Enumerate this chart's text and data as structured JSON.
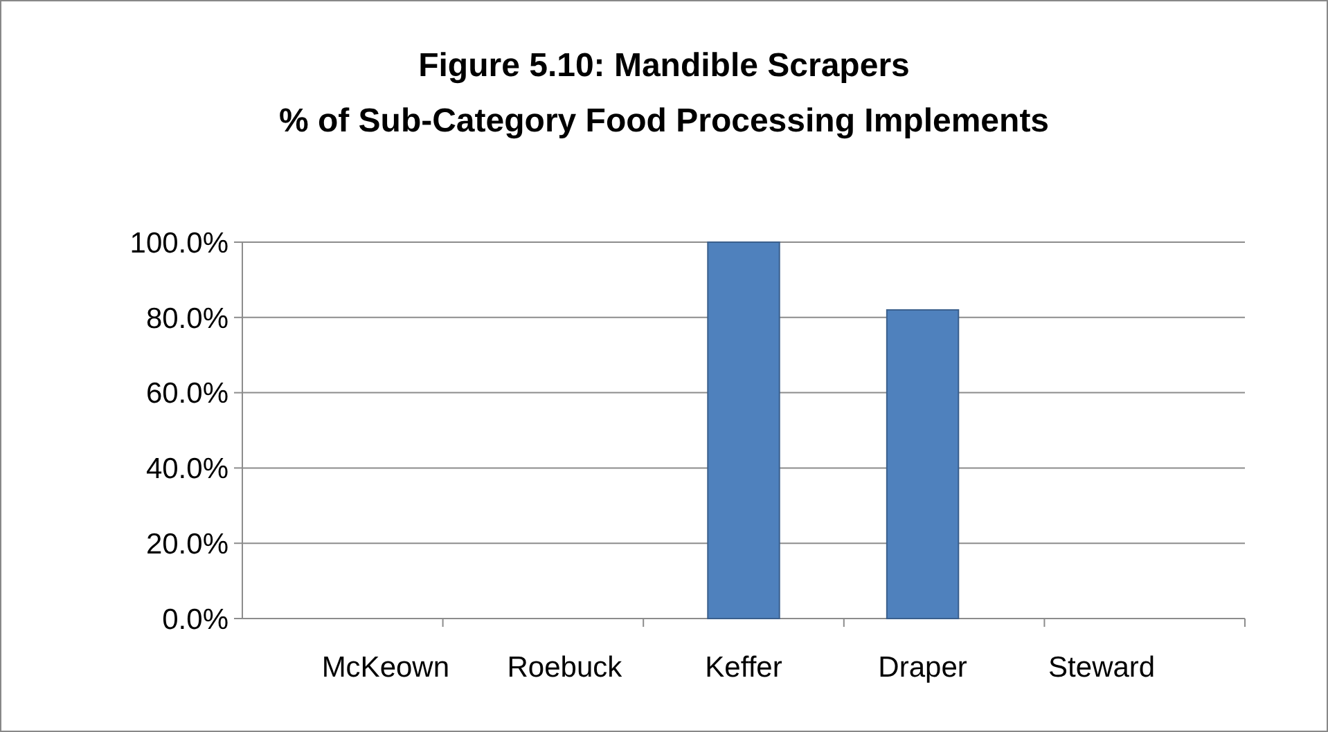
{
  "chart_data": {
    "type": "bar",
    "title": "Figure 5.10: Mandible Scrapers",
    "subtitle": "% of Sub-Category Food Processing Implements",
    "categories": [
      "McKeown",
      "Roebuck",
      "Keffer",
      "Draper",
      "Steward"
    ],
    "values": [
      0,
      0,
      100,
      82,
      0
    ],
    "color": "#4f81bd",
    "ylim": [
      0,
      100
    ],
    "yticks": [
      {
        "value": 0,
        "label": "0.0%"
      },
      {
        "value": 20,
        "label": "20.0%"
      },
      {
        "value": 40,
        "label": "40.0%"
      },
      {
        "value": 60,
        "label": "60.0%"
      },
      {
        "value": 80,
        "label": "80.0%"
      },
      {
        "value": 100,
        "label": "100.0%"
      }
    ],
    "grid": "y"
  }
}
